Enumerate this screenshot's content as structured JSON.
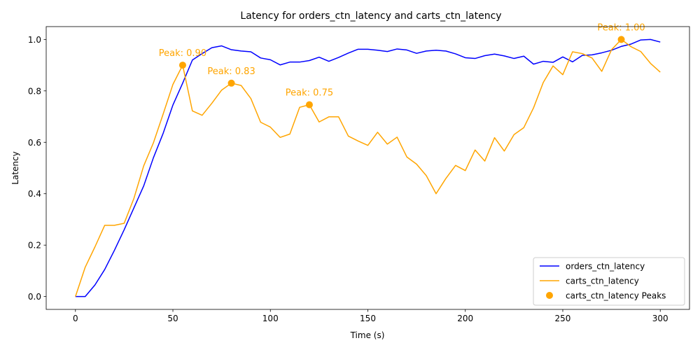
{
  "chart_data": {
    "type": "line",
    "title": "Latency for orders_ctn_latency and carts_ctn_latency",
    "xlabel": "Time (s)",
    "ylabel": "Latency",
    "xlim": [
      -15,
      315
    ],
    "ylim": [
      -0.05,
      1.05
    ],
    "xticks": [
      0,
      50,
      100,
      150,
      200,
      250,
      300
    ],
    "yticks": [
      0.0,
      0.2,
      0.4,
      0.6,
      0.8,
      1.0
    ],
    "xtick_labels": [
      "0",
      "50",
      "100",
      "150",
      "200",
      "250",
      "300"
    ],
    "ytick_labels": [
      "0.0",
      "0.2",
      "0.4",
      "0.6",
      "0.8",
      "1.0"
    ],
    "grid": false,
    "legend_position": "bottom-right",
    "x": [
      0,
      5,
      10,
      15,
      20,
      25,
      30,
      35,
      40,
      45,
      50,
      55,
      60,
      65,
      70,
      75,
      80,
      85,
      90,
      95,
      100,
      105,
      110,
      115,
      120,
      125,
      130,
      135,
      140,
      145,
      150,
      155,
      160,
      165,
      170,
      175,
      180,
      185,
      190,
      195,
      200,
      205,
      210,
      215,
      220,
      225,
      230,
      235,
      240,
      245,
      250,
      255,
      260,
      265,
      270,
      275,
      280,
      285,
      290,
      295,
      300
    ],
    "series": [
      {
        "name": "orders_ctn_latency",
        "color": "#0000ff",
        "values": [
          0.0,
          0.0,
          0.045,
          0.105,
          0.18,
          0.26,
          0.345,
          0.43,
          0.54,
          0.635,
          0.745,
          0.83,
          0.92,
          0.945,
          0.968,
          0.975,
          0.96,
          0.955,
          0.952,
          0.928,
          0.921,
          0.901,
          0.912,
          0.912,
          0.918,
          0.931,
          0.915,
          0.93,
          0.947,
          0.962,
          0.962,
          0.958,
          0.953,
          0.963,
          0.959,
          0.946,
          0.955,
          0.958,
          0.955,
          0.944,
          0.929,
          0.926,
          0.937,
          0.943,
          0.936,
          0.926,
          0.935,
          0.904,
          0.915,
          0.911,
          0.932,
          0.913,
          0.938,
          0.94,
          0.948,
          0.958,
          0.973,
          0.982,
          0.998,
          1.0,
          0.99
        ]
      },
      {
        "name": "carts_ctn_latency",
        "color": "#ffa500",
        "values": [
          0.0,
          0.114,
          0.193,
          0.277,
          0.277,
          0.285,
          0.382,
          0.508,
          0.598,
          0.71,
          0.825,
          0.9,
          0.722,
          0.705,
          0.752,
          0.803,
          0.83,
          0.821,
          0.77,
          0.678,
          0.659,
          0.619,
          0.632,
          0.736,
          0.746,
          0.679,
          0.699,
          0.699,
          0.624,
          0.605,
          0.588,
          0.639,
          0.593,
          0.62,
          0.543,
          0.515,
          0.47,
          0.4,
          0.459,
          0.51,
          0.49,
          0.57,
          0.527,
          0.618,
          0.566,
          0.63,
          0.657,
          0.734,
          0.833,
          0.897,
          0.863,
          0.952,
          0.945,
          0.928,
          0.876,
          0.96,
          1.0,
          0.972,
          0.953,
          0.907,
          0.873
        ]
      }
    ],
    "peaks": {
      "name": "carts_ctn_latency Peaks",
      "color": "#ffa500",
      "points": [
        {
          "x": 55,
          "y": 0.9,
          "label": "Peak: 0.90"
        },
        {
          "x": 80,
          "y": 0.83,
          "label": "Peak: 0.83"
        },
        {
          "x": 120,
          "y": 0.746,
          "label": "Peak: 0.75"
        },
        {
          "x": 280,
          "y": 1.0,
          "label": "Peak: 1.00"
        }
      ]
    }
  }
}
